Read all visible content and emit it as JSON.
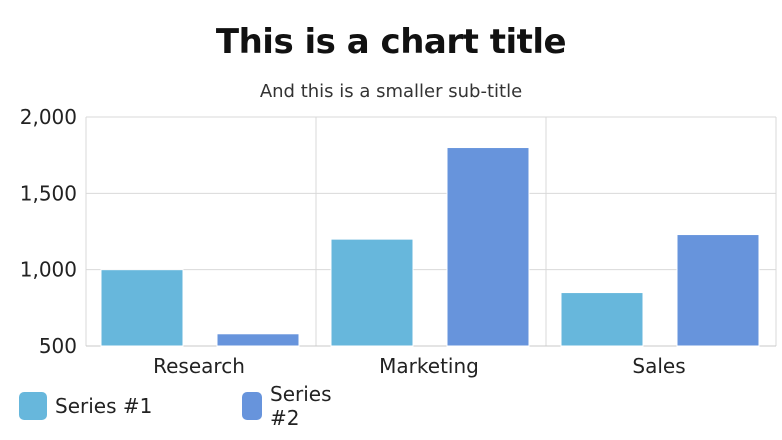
{
  "chart_data": {
    "type": "bar",
    "title": "This is a chart title",
    "subtitle": "And this is a smaller sub-title",
    "categories": [
      "Research",
      "Marketing",
      "Sales"
    ],
    "series": [
      {
        "name": "Series #1",
        "values": [
          1000,
          1200,
          850
        ],
        "color": "#67b7dc"
      },
      {
        "name": "Series #2",
        "values": [
          580,
          1800,
          1230
        ],
        "color": "#6794dc"
      }
    ],
    "ylim": [
      500,
      2000
    ],
    "yticks": [
      500,
      1000,
      1500,
      2000
    ],
    "ytick_labels": [
      "500",
      "1,000",
      "1,500",
      "2,000"
    ],
    "grid": true,
    "legend_position": "bottom-left"
  }
}
